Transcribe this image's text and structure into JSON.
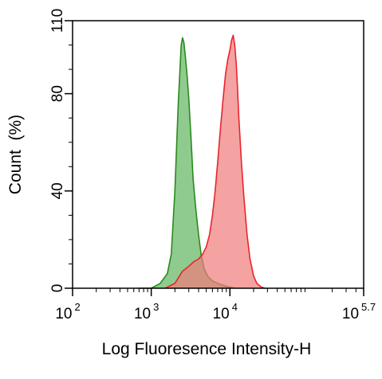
{
  "chart_data": {
    "type": "area",
    "title": "",
    "xlabel": "Log Fluoresence Intensity-H",
    "ylabel": "Count  (%)",
    "x_scale": "log",
    "xlim": [
      100,
      501187
    ],
    "ylim": [
      0,
      110
    ],
    "x_ticks": [
      {
        "value": 100,
        "base": "10",
        "exp": "2"
      },
      {
        "value": 1000,
        "base": "10",
        "exp": "3"
      },
      {
        "value": 10000,
        "base": "10",
        "exp": "4"
      },
      {
        "value": 501187,
        "base": "10",
        "exp": "5.7"
      }
    ],
    "y_ticks": [
      {
        "value": 0,
        "label": "0"
      },
      {
        "value": 40,
        "label": "40"
      },
      {
        "value": 80,
        "label": "80"
      },
      {
        "value": 110,
        "label": "110"
      }
    ],
    "grid": false,
    "legend": "none",
    "series": [
      {
        "color": "#2a8a1e",
        "fill": "#5fb55f",
        "x": [
          700,
          1000,
          1300,
          1600,
          1800,
          2000,
          2200,
          2400,
          2500,
          2600,
          2700,
          2850,
          3000,
          3200,
          3400,
          3700,
          4000,
          4300,
          4700,
          5200,
          6000,
          7000,
          8500,
          10000,
          11500
        ],
        "y": [
          0,
          0,
          2,
          6,
          14,
          40,
          75,
          100,
          103,
          101,
          96,
          88,
          78,
          62,
          45,
          32,
          22,
          14,
          8,
          5,
          3,
          2,
          1,
          0.5,
          0
        ]
      },
      {
        "color": "#e8262b",
        "fill": "#ef7a7a",
        "x": [
          1500,
          2000,
          2500,
          3000,
          3500,
          4000,
          4500,
          5000,
          5500,
          6000,
          6500,
          7000,
          7600,
          8200,
          8800,
          9400,
          10000,
          10500,
          11000,
          11500,
          12000,
          12500,
          13000,
          14000,
          15000,
          16500,
          18000,
          20000,
          22000,
          25000,
          28000
        ],
        "y": [
          0,
          2,
          7,
          9,
          11,
          12,
          14,
          17,
          22,
          30,
          40,
          52,
          66,
          78,
          88,
          94,
          98,
          102,
          104,
          100,
          93,
          82,
          70,
          52,
          38,
          22,
          12,
          5,
          2,
          0.5,
          0
        ]
      }
    ]
  }
}
